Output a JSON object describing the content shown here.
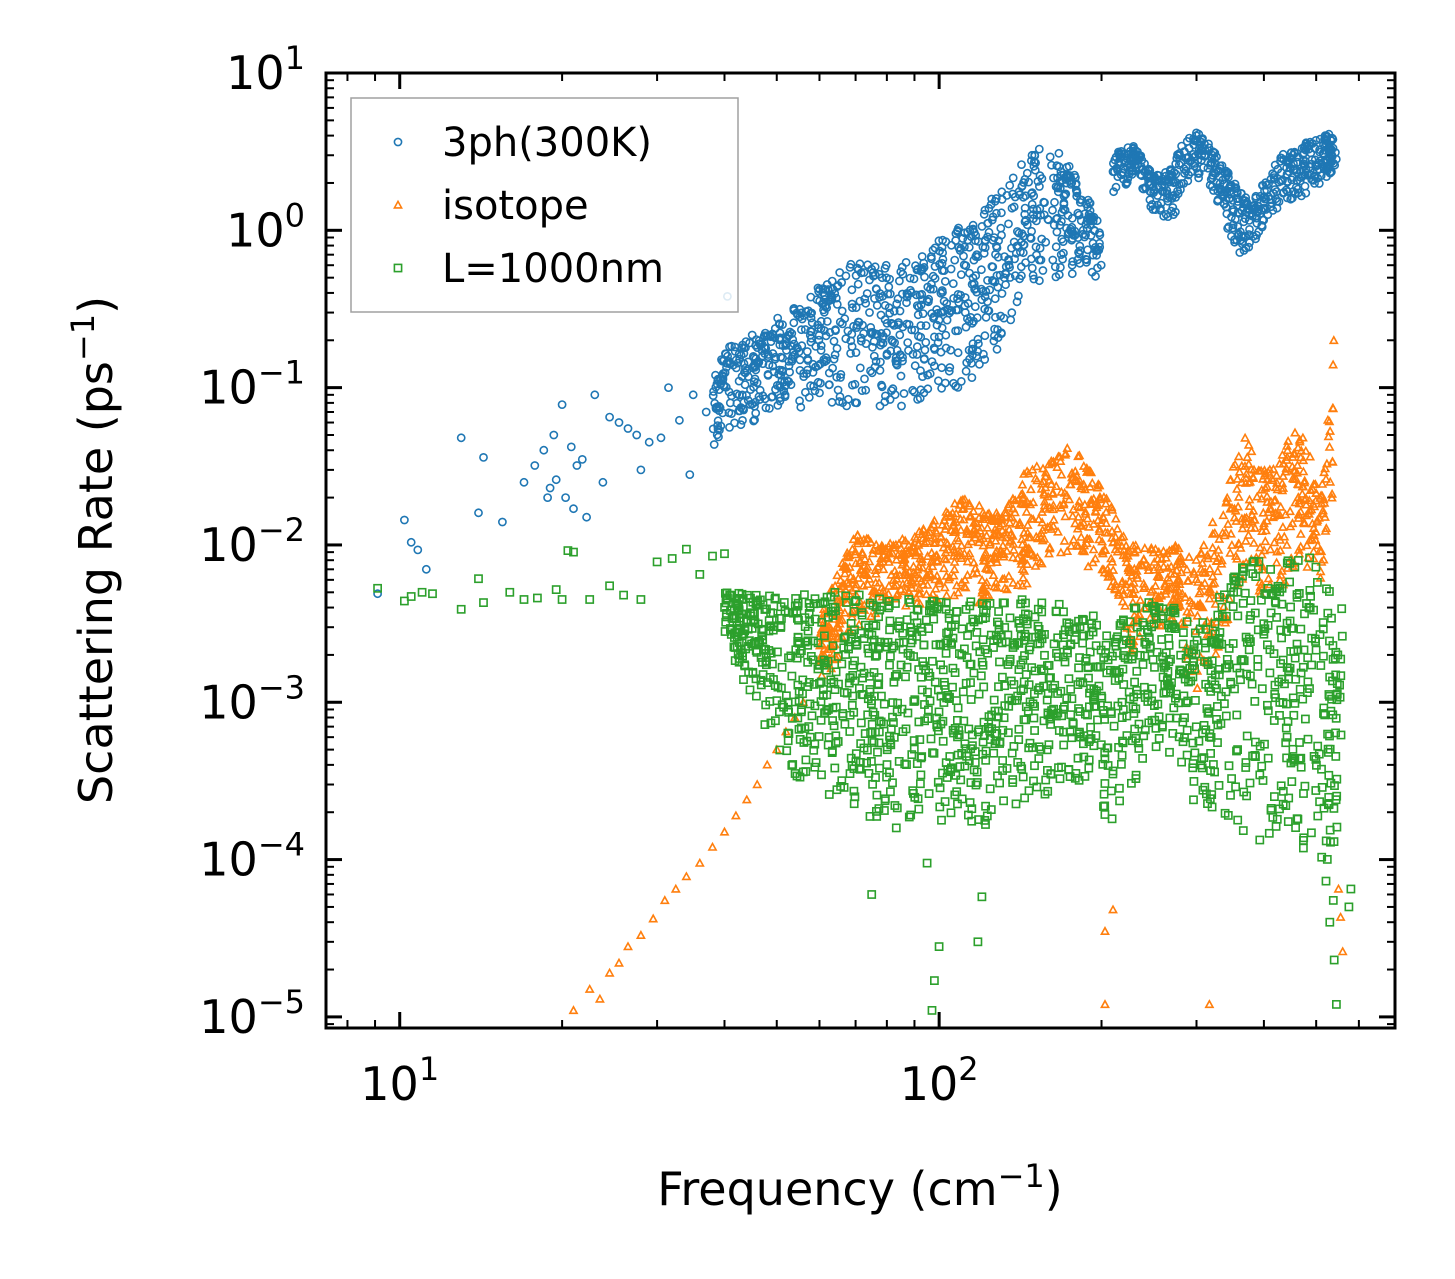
{
  "chart_data": {
    "type": "scatter",
    "title": "",
    "xlabel": "Frequency (cm",
    "xlabel_sup": "−1",
    "xlabel_end": ")",
    "ylabel": "Scattering Rate (ps",
    "ylabel_sup": "−1",
    "ylabel_end": ")",
    "xscale": "log",
    "yscale": "log",
    "xlim": [
      7.3,
      700
    ],
    "ylim": [
      8.5e-06,
      10
    ],
    "x_ticks": [
      {
        "base": "10",
        "exp": "1",
        "value": 10
      },
      {
        "base": "10",
        "exp": "2",
        "value": 100
      }
    ],
    "y_ticks": [
      {
        "base": "10",
        "exp": "1",
        "value": 10
      },
      {
        "base": "10",
        "exp": "0",
        "value": 1
      },
      {
        "base": "10",
        "exp": "−1",
        "value": 0.1
      },
      {
        "base": "10",
        "exp": "−2",
        "value": 0.01
      },
      {
        "base": "10",
        "exp": "−3",
        "value": 0.001
      },
      {
        "base": "10",
        "exp": "−4",
        "value": 0.0001
      },
      {
        "base": "10",
        "exp": "−5",
        "value": 1e-05
      }
    ],
    "legend_position": "top-left",
    "series": [
      {
        "name": "3ph(300K)",
        "marker": "circle",
        "color": "#1f77b4",
        "points": [
          [
            9.1,
            0.0049
          ],
          [
            10.2,
            0.0144
          ],
          [
            10.5,
            0.0104
          ],
          [
            10.8,
            0.0093
          ],
          [
            11.2,
            0.007
          ],
          [
            13.0,
            0.048
          ],
          [
            14.0,
            0.016
          ],
          [
            14.3,
            0.036
          ],
          [
            15.5,
            0.014
          ],
          [
            17.0,
            0.025
          ],
          [
            17.8,
            0.032
          ],
          [
            18.5,
            0.04
          ],
          [
            18.8,
            0.02
          ],
          [
            19.0,
            0.023
          ],
          [
            19.3,
            0.05
          ],
          [
            19.5,
            0.026
          ],
          [
            20.0,
            0.078
          ],
          [
            20.3,
            0.02
          ],
          [
            20.8,
            0.042
          ],
          [
            21.0,
            0.017
          ],
          [
            21.3,
            0.032
          ],
          [
            21.8,
            0.035
          ],
          [
            22.2,
            0.015
          ],
          [
            23.0,
            0.09
          ],
          [
            23.8,
            0.025
          ],
          [
            24.5,
            0.065
          ],
          [
            25.5,
            0.06
          ],
          [
            26.5,
            0.055
          ],
          [
            27.5,
            0.05
          ],
          [
            28.0,
            0.03
          ],
          [
            29.0,
            0.045
          ],
          [
            30.5,
            0.048
          ],
          [
            31.5,
            0.1
          ],
          [
            33.0,
            0.062
          ],
          [
            34.5,
            0.028
          ],
          [
            35.0,
            0.09
          ],
          [
            37.0,
            0.07
          ],
          [
            38.5,
            0.12
          ],
          [
            40.5,
            0.38
          ],
          [
            41.0,
            0.08
          ]
        ],
        "dense_band": [
          [
            38,
            0.04,
            0.16
          ],
          [
            45,
            0.06,
            0.22
          ],
          [
            52,
            0.08,
            0.3
          ],
          [
            58,
            0.07,
            0.4
          ],
          [
            65,
            0.08,
            0.55
          ],
          [
            72,
            0.06,
            0.7
          ],
          [
            80,
            0.07,
            0.6
          ],
          [
            90,
            0.08,
            0.65
          ],
          [
            100,
            0.09,
            0.9
          ],
          [
            112,
            0.1,
            1.1
          ],
          [
            125,
            0.15,
            1.6
          ],
          [
            140,
            0.3,
            2.5
          ],
          [
            155,
            0.45,
            3.5
          ],
          [
            170,
            0.5,
            3.0
          ],
          [
            185,
            0.5,
            2.0
          ],
          [
            200,
            0.5,
            1.0
          ]
        ],
        "high_band": [
          [
            210,
            1.6,
            3.2
          ],
          [
            230,
            2.2,
            3.5
          ],
          [
            250,
            1.2,
            2.2
          ],
          [
            270,
            1.0,
            2.5
          ],
          [
            290,
            2.0,
            4.5
          ],
          [
            310,
            2.0,
            4.0
          ],
          [
            360,
            0.7,
            1.8
          ],
          [
            380,
            0.8,
            1.5
          ],
          [
            400,
            1.0,
            2.0
          ],
          [
            430,
            1.5,
            3.0
          ],
          [
            470,
            1.5,
            3.5
          ],
          [
            510,
            2.0,
            4.0
          ],
          [
            545,
            2.5,
            4.2
          ]
        ]
      },
      {
        "name": "isotope",
        "marker": "triangle",
        "color": "#ff7f0e",
        "points": [
          [
            21.0,
            1.1e-05
          ],
          [
            22.5,
            1.5e-05
          ],
          [
            23.5,
            1.3e-05
          ],
          [
            24.5,
            1.9e-05
          ],
          [
            25.5,
            2.2e-05
          ],
          [
            26.5,
            2.8e-05
          ],
          [
            28.0,
            3.3e-05
          ],
          [
            29.5,
            4.2e-05
          ],
          [
            31.0,
            5.5e-05
          ],
          [
            32.5,
            6.5e-05
          ],
          [
            34.0,
            7.8e-05
          ],
          [
            36.0,
            9.5e-05
          ],
          [
            38.0,
            0.00012
          ],
          [
            40.0,
            0.00015
          ],
          [
            42.0,
            0.00019
          ],
          [
            44.0,
            0.00024
          ],
          [
            46.0,
            0.0003
          ],
          [
            48.0,
            0.0004
          ],
          [
            50.0,
            0.0005
          ],
          [
            52.0,
            0.00065
          ],
          [
            54.0,
            0.0008
          ],
          [
            56.0,
            0.001
          ],
          [
            203,
            3.5e-05
          ],
          [
            210,
            4.8e-05
          ],
          [
            203,
            1.2e-05
          ],
          [
            317,
            1.2e-05
          ],
          [
            560,
            2.6e-05
          ],
          [
            555,
            4.3e-05
          ],
          [
            550,
            6.5e-05
          ]
        ],
        "dense_band": [
          [
            60,
            0.0012,
            0.0035
          ],
          [
            70,
            0.003,
            0.012
          ],
          [
            80,
            0.004,
            0.01
          ],
          [
            90,
            0.004,
            0.012
          ],
          [
            100,
            0.004,
            0.015
          ],
          [
            110,
            0.005,
            0.02
          ],
          [
            120,
            0.004,
            0.02
          ],
          [
            130,
            0.0045,
            0.015
          ],
          [
            145,
            0.0055,
            0.03
          ],
          [
            160,
            0.007,
            0.035
          ],
          [
            175,
            0.008,
            0.045
          ],
          [
            190,
            0.006,
            0.03
          ],
          [
            205,
            0.006,
            0.02
          ],
          [
            225,
            0.002,
            0.01
          ],
          [
            250,
            0.003,
            0.01
          ],
          [
            275,
            0.003,
            0.01
          ],
          [
            300,
            0.0008,
            0.008
          ],
          [
            370,
            0.006,
            0.05
          ],
          [
            400,
            0.004,
            0.03
          ],
          [
            430,
            0.004,
            0.04
          ],
          [
            470,
            0.008,
            0.06
          ],
          [
            510,
            0.005,
            0.02
          ],
          [
            540,
            0.02,
            0.24
          ]
        ]
      },
      {
        "name": "L=1000nm",
        "marker": "square",
        "color": "#2ca02c",
        "points": [
          [
            9.1,
            0.0053
          ],
          [
            10.2,
            0.0044
          ],
          [
            10.5,
            0.0047
          ],
          [
            11.0,
            0.005
          ],
          [
            11.5,
            0.0049
          ],
          [
            13.0,
            0.0039
          ],
          [
            14.0,
            0.0061
          ],
          [
            14.3,
            0.0043
          ],
          [
            16.0,
            0.005
          ],
          [
            17.0,
            0.0045
          ],
          [
            18.0,
            0.0046
          ],
          [
            19.5,
            0.0052
          ],
          [
            20.0,
            0.0045
          ],
          [
            20.5,
            0.0092
          ],
          [
            21.0,
            0.009
          ],
          [
            22.5,
            0.0045
          ],
          [
            24.5,
            0.0055
          ],
          [
            26.0,
            0.0048
          ],
          [
            28.0,
            0.0045
          ],
          [
            30.0,
            0.0078
          ],
          [
            32.0,
            0.0082
          ],
          [
            34.0,
            0.0094
          ],
          [
            36.0,
            0.0065
          ],
          [
            38.0,
            0.0085
          ],
          [
            40.0,
            0.0088
          ],
          [
            75,
            6e-05
          ],
          [
            95,
            9.5e-05
          ],
          [
            100,
            2.8e-05
          ],
          [
            98,
            1.7e-05
          ],
          [
            97,
            1.1e-05
          ],
          [
            120,
            5.8e-05
          ],
          [
            118,
            3e-05
          ],
          [
            545,
            1.2e-05
          ],
          [
            540,
            2.3e-05
          ],
          [
            538,
            5.5e-05
          ],
          [
            530,
            4e-05
          ],
          [
            575,
            5e-05
          ],
          [
            580,
            6.5e-05
          ]
        ],
        "dense_band": [
          [
            40,
            0.0025,
            0.005
          ],
          [
            45,
            0.001,
            0.005
          ],
          [
            50,
            0.0004,
            0.005
          ],
          [
            55,
            0.0003,
            0.005
          ],
          [
            60,
            0.00025,
            0.005
          ],
          [
            70,
            0.0002,
            0.005
          ],
          [
            80,
            0.00015,
            0.0045
          ],
          [
            90,
            0.00015,
            0.0045
          ],
          [
            100,
            0.00015,
            0.0045
          ],
          [
            110,
            0.00015,
            0.0045
          ],
          [
            125,
            0.00015,
            0.0045
          ],
          [
            140,
            0.0002,
            0.0045
          ],
          [
            160,
            0.00025,
            0.0045
          ],
          [
            180,
            0.0003,
            0.004
          ],
          [
            195,
            0.0003,
            0.0035
          ],
          [
            205,
            0.00015,
            0.003
          ],
          [
            225,
            0.00025,
            0.004
          ],
          [
            250,
            0.0004,
            0.0045
          ],
          [
            275,
            0.0005,
            0.004
          ],
          [
            300,
            0.0002,
            0.003
          ],
          [
            370,
            0.00015,
            0.008
          ],
          [
            400,
            0.0001,
            0.008
          ],
          [
            430,
            0.00015,
            0.008
          ],
          [
            470,
            0.0001,
            0.009
          ],
          [
            500,
            0.0001,
            0.008
          ],
          [
            530,
            5e-05,
            0.005
          ],
          [
            560,
            0.0002,
            0.004
          ]
        ]
      }
    ]
  }
}
